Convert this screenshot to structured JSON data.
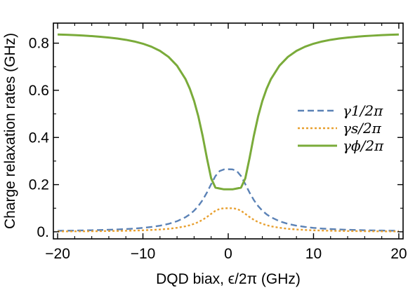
{
  "chart_data": {
    "type": "line",
    "title": "",
    "xlabel": "DQD biax, ϵ/2π (GHz)",
    "ylabel": "Charge relaxation rates (GHz)",
    "xlim": [
      -20.5,
      20.5
    ],
    "ylim": [
      -0.03,
      0.885
    ],
    "xticks": [
      -20,
      -10,
      0,
      10,
      20
    ],
    "xtick_labels": [
      "−20",
      "−10",
      "0",
      "10",
      "20"
    ],
    "yticks": [
      0.0,
      0.2,
      0.4,
      0.6,
      0.8
    ],
    "ytick_labels": [
      "0.",
      "0.2",
      "0.4",
      "0.6",
      "0.8"
    ],
    "legend_position": "center-right",
    "grid": false,
    "x": [
      -20,
      -19,
      -18,
      -17,
      -16,
      -15,
      -14,
      -13,
      -12,
      -11,
      -10,
      -9,
      -8,
      -7,
      -6,
      -5,
      -4.5,
      -4,
      -3.5,
      -3,
      -2.5,
      -2,
      -1.5,
      -1,
      -0.5,
      0,
      0.5,
      1,
      1.5,
      2,
      2.5,
      3,
      3.5,
      4,
      4.5,
      5,
      6,
      7,
      8,
      9,
      10,
      11,
      12,
      13,
      14,
      15,
      16,
      17,
      18,
      19,
      20
    ],
    "series": [
      {
        "name": "γ1/2π",
        "style": "dashed",
        "color": "#5b82b6",
        "values": [
          0.0043,
          0.0048,
          0.0053,
          0.0059,
          0.0066,
          0.0075,
          0.0086,
          0.0099,
          0.0116,
          0.0138,
          0.0167,
          0.0206,
          0.026,
          0.0336,
          0.0449,
          0.062,
          0.0741,
          0.0896,
          0.1095,
          0.1348,
          0.1663,
          0.2021,
          0.2363,
          0.2579,
          0.2646,
          0.2652,
          0.2646,
          0.2579,
          0.2363,
          0.2021,
          0.1663,
          0.1348,
          0.1095,
          0.0896,
          0.0741,
          0.062,
          0.0449,
          0.0336,
          0.026,
          0.0206,
          0.0167,
          0.0138,
          0.0116,
          0.0099,
          0.0086,
          0.0075,
          0.0066,
          0.0059,
          0.0053,
          0.0048,
          0.0043
        ]
      },
      {
        "name": "γs/2π",
        "style": "dotted",
        "color": "#e8a030",
        "values": [
          0.0016,
          0.0018,
          0.002,
          0.0022,
          0.0025,
          0.0028,
          0.0033,
          0.0037,
          0.0044,
          0.0052,
          0.0063,
          0.0078,
          0.0098,
          0.0127,
          0.017,
          0.0234,
          0.028,
          0.0338,
          0.0413,
          0.0508,
          0.0627,
          0.0762,
          0.0891,
          0.0973,
          0.0998,
          0.1,
          0.0998,
          0.0973,
          0.0891,
          0.0762,
          0.0627,
          0.0508,
          0.0413,
          0.0338,
          0.028,
          0.0234,
          0.017,
          0.0127,
          0.0098,
          0.0078,
          0.0063,
          0.0052,
          0.0044,
          0.0037,
          0.0033,
          0.0028,
          0.0025,
          0.0022,
          0.002,
          0.0018,
          0.0016
        ]
      },
      {
        "name": "γϕ/2π",
        "style": "solid",
        "color": "#7aab3a",
        "values": [
          0.8369,
          0.8355,
          0.834,
          0.8321,
          0.8299,
          0.8272,
          0.8238,
          0.8196,
          0.8142,
          0.8071,
          0.7977,
          0.785,
          0.7672,
          0.7418,
          0.7043,
          0.647,
          0.6066,
          0.5548,
          0.4887,
          0.4067,
          0.3127,
          0.2266,
          0.1873,
          0.1835,
          0.18,
          0.18,
          0.18,
          0.1835,
          0.1873,
          0.2266,
          0.3127,
          0.4067,
          0.4887,
          0.5548,
          0.6066,
          0.647,
          0.7043,
          0.7418,
          0.7672,
          0.785,
          0.7977,
          0.8071,
          0.8142,
          0.8196,
          0.8238,
          0.8272,
          0.8299,
          0.8321,
          0.834,
          0.8355,
          0.8369
        ]
      }
    ]
  }
}
